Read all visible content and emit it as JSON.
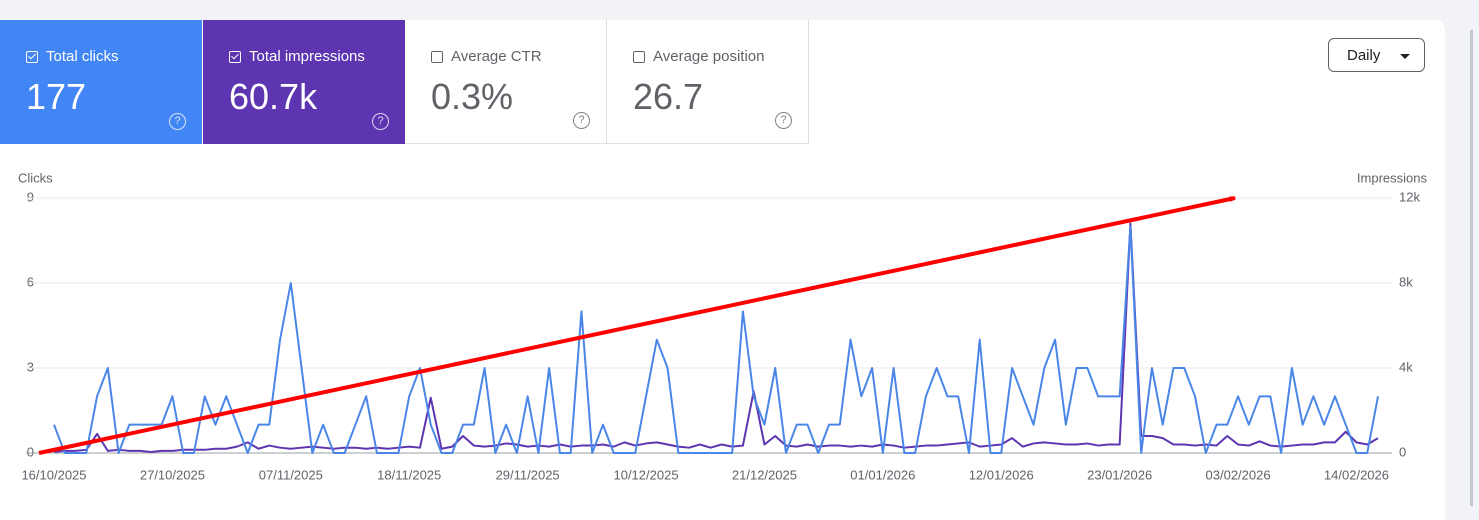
{
  "metrics": [
    {
      "label": "Total clicks",
      "value": "177"
    },
    {
      "label": "Total impressions",
      "value": "60.7k"
    },
    {
      "label": "Average CTR",
      "value": "0.3%"
    },
    {
      "label": "Average position",
      "value": "26.7"
    }
  ],
  "period": "Daily",
  "chart_data": {
    "type": "line",
    "y_label": "Clicks",
    "y2_label": "Impressions",
    "categories": [
      "16/10/2025",
      null,
      null,
      null,
      null,
      null,
      null,
      null,
      null,
      null,
      null,
      "27/10/2025",
      null,
      null,
      null,
      null,
      null,
      null,
      null,
      null,
      null,
      null,
      "07/11/2025",
      null,
      null,
      null,
      null,
      null,
      null,
      null,
      null,
      null,
      null,
      "18/11/2025",
      null,
      null,
      null,
      null,
      null,
      null,
      null,
      null,
      null,
      null,
      "29/11/2025",
      null,
      null,
      null,
      null,
      null,
      null,
      null,
      null,
      null,
      null,
      "10/12/2025",
      null,
      null,
      null,
      null,
      null,
      null,
      null,
      null,
      null,
      null,
      "21/12/2025",
      null,
      null,
      null,
      null,
      null,
      null,
      null,
      null,
      null,
      null,
      "01/01/2026",
      null,
      null,
      null,
      null,
      null,
      null,
      null,
      null,
      null,
      null,
      "12/01/2026",
      null,
      null,
      null,
      null,
      null,
      null,
      null,
      null,
      null,
      null,
      "23/01/2026",
      null,
      null,
      null,
      null,
      null,
      null,
      null,
      null,
      null,
      null,
      "03/02/2026",
      null,
      null,
      null,
      null,
      null,
      null,
      null,
      null,
      null,
      null,
      "14/02/2026",
      null,
      null
    ],
    "series": [
      {
        "name": "Clicks",
        "color": "#4a86e8",
        "values": [
          1,
          0,
          0,
          0,
          2,
          3,
          0,
          1,
          1,
          1,
          1,
          2,
          0,
          0,
          2,
          1,
          2,
          1,
          0,
          1,
          1,
          4,
          6,
          3,
          0,
          1,
          0,
          0,
          1,
          2,
          0,
          0,
          0,
          2,
          3,
          1,
          0,
          0,
          1,
          1,
          3,
          0,
          1,
          0,
          2,
          0,
          3,
          0,
          0,
          5,
          0,
          1,
          0,
          0,
          0,
          2,
          4,
          3,
          0,
          0,
          0,
          0,
          0,
          0,
          5,
          2,
          1,
          3,
          0,
          1,
          1,
          0,
          1,
          1,
          4,
          2,
          3,
          0,
          3,
          0,
          0,
          2,
          3,
          2,
          2,
          0,
          4,
          0,
          0,
          3,
          2,
          1,
          3,
          4,
          1,
          3,
          3,
          2,
          2,
          2,
          8,
          0,
          3,
          1,
          3,
          3,
          2,
          0,
          1,
          1,
          2,
          1,
          2,
          2,
          0,
          3,
          1,
          2,
          1,
          2,
          1,
          0,
          0,
          2
        ]
      },
      {
        "name": "Impressions",
        "color": "#5e35b1",
        "axis": "y2",
        "values": [
          50,
          100,
          100,
          150,
          900,
          100,
          150,
          100,
          100,
          50,
          100,
          100,
          150,
          150,
          150,
          200,
          200,
          300,
          500,
          200,
          350,
          250,
          200,
          250,
          300,
          250,
          200,
          250,
          250,
          200,
          250,
          200,
          250,
          300,
          250,
          2600,
          200,
          300,
          800,
          350,
          300,
          350,
          450,
          400,
          300,
          350,
          300,
          400,
          300,
          350,
          350,
          400,
          300,
          500,
          350,
          450,
          500,
          400,
          300,
          250,
          400,
          250,
          400,
          300,
          350,
          2900,
          400,
          800,
          350,
          300,
          400,
          300,
          350,
          350,
          300,
          350,
          300,
          400,
          350,
          250,
          300,
          350,
          350,
          400,
          450,
          500,
          300,
          350,
          400,
          700,
          300,
          450,
          500,
          450,
          400,
          400,
          450,
          350,
          400,
          400,
          10800,
          800,
          800,
          700,
          400,
          400,
          350,
          400,
          350,
          800,
          400,
          350,
          550,
          350,
          300,
          350,
          400,
          400,
          500,
          500,
          1000,
          500,
          400,
          700
        ]
      }
    ],
    "ylim": [
      0,
      9
    ],
    "yticks": [
      0,
      3,
      6,
      9
    ],
    "y2lim": [
      0,
      12000
    ],
    "y2ticks": [
      0,
      {
        "value": 4000,
        "label": "4k"
      },
      {
        "value": 8000,
        "label": "8k"
      },
      {
        "value": 12000,
        "label": "12k"
      }
    ],
    "grid": true
  }
}
